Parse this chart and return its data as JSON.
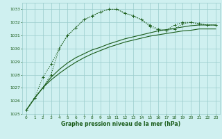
{
  "xlabel": "Graphe pression niveau de la mer (hPa)",
  "bg_color": "#cff0f0",
  "grid_color": "#99cccc",
  "line_color": "#1a5c1a",
  "ylim": [
    1025,
    1033.5
  ],
  "xlim": [
    -0.5,
    23.5
  ],
  "yticks": [
    1025,
    1026,
    1027,
    1028,
    1029,
    1030,
    1031,
    1032,
    1033
  ],
  "xticks": [
    0,
    1,
    2,
    3,
    4,
    5,
    6,
    7,
    8,
    9,
    10,
    11,
    12,
    13,
    14,
    15,
    16,
    17,
    18,
    19,
    20,
    21,
    22,
    23
  ],
  "s1_x": [
    0,
    1,
    2,
    3,
    4,
    5,
    6,
    7,
    8,
    9,
    10,
    11,
    12,
    13,
    14,
    15,
    16,
    17,
    18,
    19,
    20,
    21,
    22,
    23
  ],
  "s1_y": [
    1025.3,
    1026.2,
    1027.0,
    1028.0,
    1030.0,
    1031.0,
    1031.6,
    1032.2,
    1032.5,
    1032.8,
    1033.0,
    1033.0,
    1032.7,
    1032.5,
    1032.2,
    1031.8,
    1031.5,
    1031.4,
    1031.5,
    1031.9,
    1032.0,
    1031.9,
    1031.8,
    1031.8
  ],
  "s2_x": [
    0,
    1,
    2,
    3,
    4,
    5,
    6,
    7,
    8,
    9,
    10,
    11,
    12,
    13,
    14,
    15,
    16,
    17,
    18,
    19,
    20,
    21,
    22,
    23
  ],
  "s2_y": [
    1025.3,
    1026.2,
    1027.8,
    1028.8,
    1030.0,
    1031.0,
    1031.6,
    1032.2,
    1032.5,
    1032.8,
    1033.0,
    1033.0,
    1032.7,
    1032.5,
    1032.2,
    1031.7,
    1031.4,
    1031.4,
    1031.8,
    1032.0,
    1032.0,
    1031.9,
    1031.8,
    1031.8
  ],
  "s3_x": [
    0,
    1,
    2,
    3,
    4,
    5,
    6,
    7,
    8,
    9,
    10,
    11,
    12,
    13,
    14,
    15,
    16,
    17,
    18,
    19,
    20,
    21,
    22,
    23
  ],
  "s3_y": [
    1025.3,
    1026.2,
    1027.0,
    1027.8,
    1028.4,
    1028.9,
    1029.3,
    1029.6,
    1029.9,
    1030.1,
    1030.35,
    1030.55,
    1030.75,
    1030.9,
    1031.05,
    1031.2,
    1031.35,
    1031.45,
    1031.55,
    1031.65,
    1031.75,
    1031.8,
    1031.8,
    1031.8
  ],
  "s4_x": [
    0,
    1,
    2,
    3,
    4,
    5,
    6,
    7,
    8,
    9,
    10,
    11,
    12,
    13,
    14,
    15,
    16,
    17,
    18,
    19,
    20,
    21,
    22,
    23
  ],
  "s4_y": [
    1025.3,
    1026.2,
    1027.0,
    1027.6,
    1028.1,
    1028.55,
    1028.95,
    1029.3,
    1029.6,
    1029.85,
    1030.1,
    1030.3,
    1030.5,
    1030.65,
    1030.8,
    1030.95,
    1031.05,
    1031.15,
    1031.25,
    1031.35,
    1031.4,
    1031.5,
    1031.5,
    1031.5
  ]
}
